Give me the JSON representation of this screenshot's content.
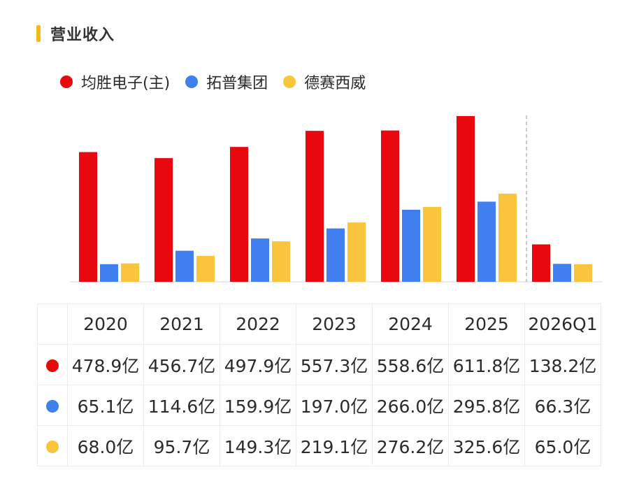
{
  "title": "营业收入",
  "colors": {
    "accent": "#f6b81a",
    "series": [
      "#e8090f",
      "#3f7fef",
      "#f9c53c"
    ]
  },
  "chart_data": {
    "type": "bar",
    "categories": [
      "2020",
      "2021",
      "2022",
      "2023",
      "2024",
      "2025",
      "2026Q1"
    ],
    "series": [
      {
        "name": "均胜电子(主)",
        "values": [
          478.9,
          456.7,
          497.9,
          557.3,
          558.6,
          611.8,
          138.2
        ]
      },
      {
        "name": "拓普集团",
        "values": [
          65.1,
          114.6,
          159.9,
          197.0,
          266.0,
          295.8,
          66.3
        ]
      },
      {
        "name": "德赛西威",
        "values": [
          68.0,
          95.7,
          149.3,
          219.1,
          276.2,
          325.6,
          65.0
        ]
      }
    ],
    "unit": "亿",
    "ylim": [
      0,
      611.8
    ],
    "legend_position": "top-left",
    "grid": false,
    "separator_before": "2026Q1"
  },
  "table": {
    "headers": [
      "2020",
      "2021",
      "2022",
      "2023",
      "2024",
      "2025",
      "2026Q1"
    ],
    "rows": [
      [
        "478.9亿",
        "456.7亿",
        "497.9亿",
        "557.3亿",
        "558.6亿",
        "611.8亿",
        "138.2亿"
      ],
      [
        "65.1亿",
        "114.6亿",
        "159.9亿",
        "197.0亿",
        "266.0亿",
        "295.8亿",
        "66.3亿"
      ],
      [
        "68.0亿",
        "95.7亿",
        "149.3亿",
        "219.1亿",
        "276.2亿",
        "325.6亿",
        "65.0亿"
      ]
    ]
  }
}
